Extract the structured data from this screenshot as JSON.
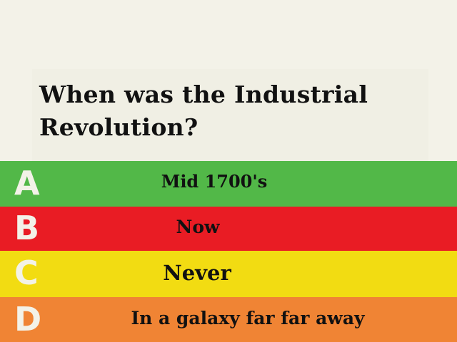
{
  "question": "When was the Industrial Revolution?",
  "answers": [
    {
      "letter": "A",
      "text": "Mid 1700's",
      "color": "#52b848"
    },
    {
      "letter": "B",
      "text": "Now",
      "color": "#e91c24"
    },
    {
      "letter": "C",
      "text": "Never",
      "color": "#f2dc12"
    },
    {
      "letter": "D",
      "text": "In a galaxy far far away",
      "color": "#f08434"
    }
  ]
}
